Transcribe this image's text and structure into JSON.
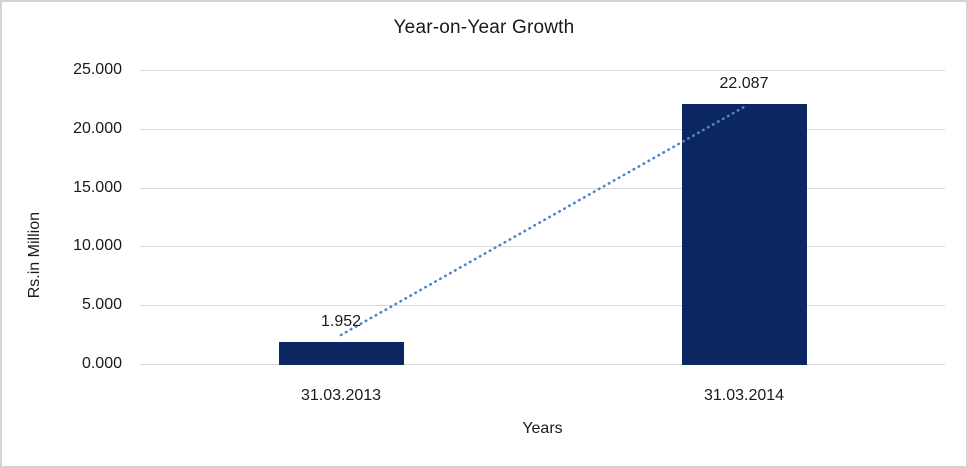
{
  "window": {
    "background": "#ffffff",
    "border_color": "#d3d3d3"
  },
  "chart_data": {
    "type": "bar",
    "title": "Year-on-Year Growth",
    "xlabel": "Years",
    "ylabel": "Rs.in Million",
    "categories": [
      "31.03.2013",
      "31.03.2014"
    ],
    "values": [
      1.952,
      22.087
    ],
    "value_labels": [
      "1.952",
      "22.087"
    ],
    "ylim": [
      0,
      25
    ],
    "ytick_labels": [
      "25.000",
      "20.000",
      "15.000",
      "10.000",
      "5.000",
      "0.000"
    ],
    "grid": "horizontal-only",
    "legend": "none",
    "colors": {
      "bar": "#0b2661",
      "trendline": "#4c84c8",
      "gridline": "#d9d9d9",
      "text": "#1a1a1a"
    },
    "trendline": {
      "type": "linear",
      "style": "dotted",
      "spans": "bar1-top to bar2-top"
    }
  }
}
